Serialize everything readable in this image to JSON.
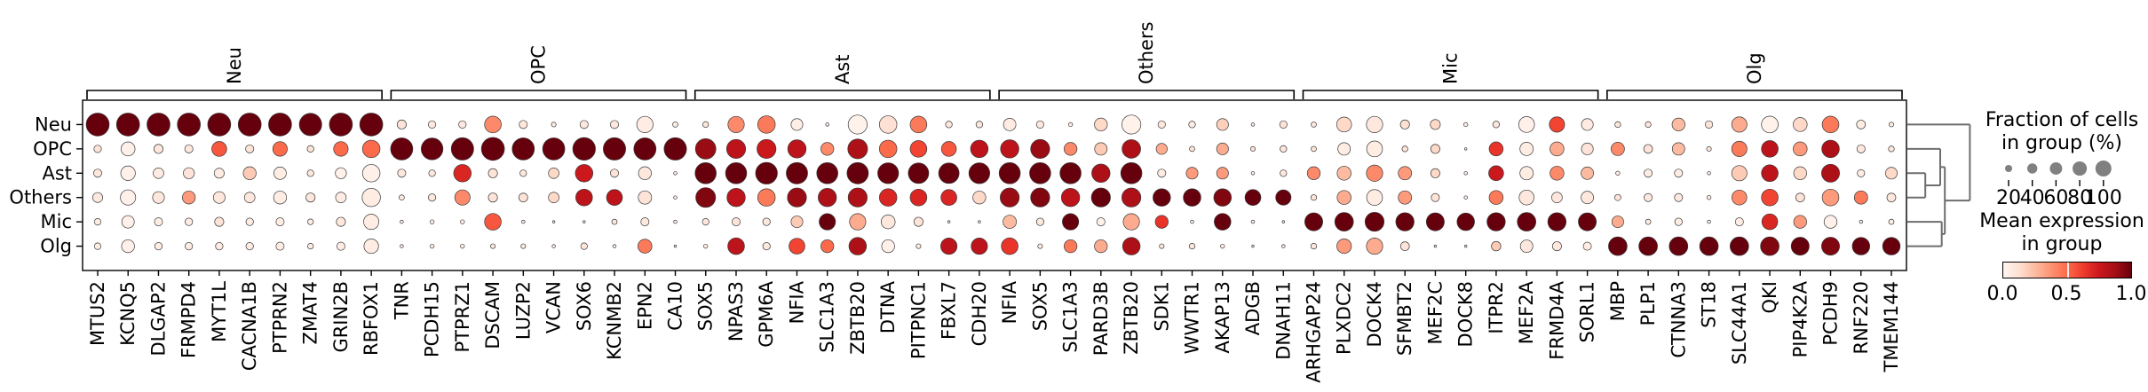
{
  "chart_data": {
    "type": "scatter",
    "subtype": "dotplot",
    "title": "",
    "xlabel": "",
    "ylabel": "",
    "rows": [
      "Neu",
      "OPC",
      "Ast",
      "Others",
      "Mic",
      "Olg"
    ],
    "gene_groups": [
      {
        "label": "Neu",
        "genes": [
          "MTUS2",
          "KCNQ5",
          "DLGAP2",
          "FRMPD4",
          "MYT1L",
          "CACNA1B",
          "PTPRN2",
          "ZMAT4",
          "GRIN2B",
          "RBFOX1"
        ]
      },
      {
        "label": "OPC",
        "genes": [
          "TNR",
          "PCDH15",
          "PTPRZ1",
          "DSCAM",
          "LUZP2",
          "VCAN",
          "SOX6",
          "KCNMB2",
          "EPN2",
          "CA10"
        ]
      },
      {
        "label": "Ast",
        "genes": [
          "SOX5",
          "NPAS3",
          "GPM6A",
          "NFIA",
          "SLC1A3",
          "ZBTB20",
          "DTNA",
          "PITPNC1",
          "FBXL7",
          "CDH20"
        ]
      },
      {
        "label": "Others",
        "genes": [
          "NFIA",
          "SOX5",
          "SLC1A3",
          "PARD3B",
          "ZBTB20",
          "SDK1",
          "WWTR1",
          "AKAP13",
          "ADGB",
          "DNAH11"
        ]
      },
      {
        "label": "Mic",
        "genes": [
          "ARHGAP24",
          "PLXDC2",
          "DOCK4",
          "SFMBT2",
          "MEF2C",
          "DOCK8",
          "ITPR2",
          "MEF2A",
          "FRMD4A",
          "SORL1"
        ]
      },
      {
        "label": "Olg",
        "genes": [
          "MBP",
          "PLP1",
          "CTNNA3",
          "ST18",
          "SLC44A1",
          "QKI",
          "PIP4K2A",
          "PCDH9",
          "RNF220",
          "TMEM144"
        ]
      }
    ],
    "fraction_pct": {
      "Neu": [
        95,
        95,
        95,
        95,
        95,
        95,
        95,
        90,
        95,
        95,
        15,
        10,
        10,
        50,
        12,
        4,
        12,
        12,
        48,
        5,
        6,
        48,
        55,
        25,
        2,
        65,
        55,
        50,
        8,
        8,
        28,
        10,
        3,
        30,
        65,
        10,
        8,
        25,
        2,
        10,
        5,
        40,
        48,
        15,
        18,
        3,
        8,
        45,
        42,
        25,
        6,
        6,
        30,
        10,
        42,
        50,
        35,
        50,
        14,
        4
      ],
      "OPC": [
        10,
        35,
        15,
        12,
        40,
        12,
        38,
        8,
        38,
        55,
        88,
        85,
        90,
        95,
        88,
        88,
        92,
        90,
        88,
        90,
        75,
        65,
        65,
        60,
        30,
        70,
        55,
        50,
        40,
        55,
        60,
        65,
        30,
        28,
        62,
        22,
        5,
        25,
        4,
        8,
        5,
        28,
        45,
        6,
        15,
        1,
        35,
        32,
        35,
        25,
        32,
        14,
        28,
        4,
        42,
        50,
        35,
        55,
        12,
        6
      ],
      "Ast": [
        12,
        38,
        20,
        22,
        18,
        30,
        28,
        8,
        22,
        55,
        12,
        8,
        55,
        15,
        8,
        20,
        55,
        12,
        30,
        2,
        80,
        80,
        85,
        82,
        80,
        82,
        78,
        75,
        75,
        78,
        80,
        80,
        80,
        60,
        80,
        12,
        25,
        25,
        2,
        8,
        30,
        35,
        48,
        32,
        15,
        2,
        40,
        32,
        35,
        28,
        3,
        12,
        12,
        2,
        42,
        50,
        30,
        58,
        10,
        25
      ],
      "Others": [
        18,
        42,
        25,
        30,
        25,
        20,
        30,
        15,
        20,
        60,
        5,
        10,
        42,
        15,
        14,
        20,
        50,
        45,
        32,
        2,
        70,
        60,
        55,
        65,
        60,
        65,
        55,
        50,
        45,
        30,
        65,
        65,
        60,
        65,
        65,
        55,
        55,
        55,
        45,
        42,
        6,
        35,
        45,
        32,
        12,
        2,
        35,
        40,
        20,
        28,
        7,
        12,
        12,
        3,
        40,
        50,
        14,
        50,
        32,
        14
      ],
      "Mic": [
        8,
        28,
        12,
        10,
        15,
        10,
        12,
        6,
        15,
        42,
        2,
        3,
        3,
        50,
        2,
        1,
        1,
        5,
        12,
        2,
        8,
        12,
        10,
        25,
        48,
        48,
        35,
        15,
        1,
        1,
        32,
        10,
        48,
        12,
        48,
        30,
        2,
        50,
        2,
        1,
        58,
        62,
        65,
        60,
        58,
        55,
        60,
        62,
        60,
        58,
        25,
        5,
        10,
        2,
        12,
        45,
        30,
        30,
        2,
        5
      ],
      "Olg": [
        8,
        30,
        10,
        10,
        10,
        10,
        12,
        6,
        12,
        38,
        2,
        3,
        3,
        4,
        4,
        2,
        8,
        2,
        35,
        1,
        3,
        50,
        10,
        45,
        30,
        55,
        30,
        4,
        48,
        48,
        50,
        4,
        30,
        30,
        55,
        4,
        6,
        3,
        1,
        2,
        6,
        38,
        48,
        14,
        1,
        1,
        16,
        28,
        15,
        12,
        62,
        62,
        62,
        62,
        62,
        62,
        58,
        58,
        55,
        55
      ]
    },
    "mean_expression": {
      "Neu": [
        1,
        1,
        1,
        1,
        1,
        1,
        1,
        1,
        1,
        1,
        0.1,
        0.08,
        0.08,
        0.4,
        0.08,
        0.05,
        0.08,
        0.08,
        0.05,
        0.05,
        0.08,
        0.4,
        0.45,
        0.04,
        0.05,
        0.02,
        0.12,
        0.45,
        0.08,
        0.08,
        0.06,
        0.08,
        0.05,
        0.15,
        0.02,
        0.08,
        0.05,
        0.18,
        0.05,
        0.1,
        0.08,
        0.15,
        0.08,
        0.12,
        0.15,
        0.05,
        0.08,
        0.03,
        0.6,
        0.06,
        0.08,
        0.08,
        0.25,
        0.1,
        0.3,
        0.02,
        0.15,
        0.45,
        0.05,
        0.05
      ],
      "OPC": [
        0.1,
        0.03,
        0.08,
        0.08,
        0.55,
        0.1,
        0.5,
        0.1,
        0.5,
        0.5,
        1,
        1,
        1,
        1,
        1,
        1,
        1,
        1,
        1,
        1,
        0.9,
        0.8,
        0.75,
        0.8,
        0.4,
        0.85,
        0.5,
        0.6,
        0.55,
        0.8,
        0.8,
        0.9,
        0.4,
        0.2,
        0.85,
        0.3,
        0.1,
        0.3,
        0.1,
        0.08,
        0.1,
        0.05,
        0.05,
        0.1,
        0.15,
        0.05,
        0.65,
        0.05,
        0.3,
        0.1,
        0.4,
        0.1,
        0.25,
        0.08,
        0.45,
        0.8,
        0.35,
        0.85,
        0.08,
        0.08
      ],
      "Ast": [
        0.08,
        0.03,
        0.05,
        0.1,
        0.05,
        0.2,
        0.05,
        0.08,
        0.03,
        0.03,
        0.08,
        0.08,
        0.7,
        0.1,
        0.08,
        0.15,
        0.75,
        0.1,
        0.08,
        0.05,
        1,
        1,
        1,
        1,
        1,
        1,
        1,
        1,
        1,
        1,
        1,
        1,
        1,
        0.85,
        1,
        0.05,
        0.35,
        0.35,
        0.05,
        0.08,
        0.4,
        0.25,
        0.4,
        0.35,
        0.15,
        0.05,
        0.75,
        0.05,
        0.4,
        0.25,
        0.05,
        0.05,
        0.05,
        0.05,
        0.2,
        0.8,
        0.15,
        0.85,
        0.05,
        0.15
      ],
      "Others": [
        0.08,
        0.03,
        0.08,
        0.35,
        0.08,
        0.08,
        0.05,
        0.08,
        0.05,
        0.05,
        0.05,
        0.08,
        0.4,
        0.1,
        0.1,
        0.15,
        0.8,
        0.8,
        0.1,
        0.05,
        0.95,
        0.8,
        0.45,
        0.9,
        0.85,
        0.85,
        0.7,
        0.7,
        0.7,
        0.15,
        0.9,
        0.95,
        0.8,
        1,
        0.85,
        1,
        1,
        0.95,
        1,
        1,
        0.1,
        0.3,
        0.05,
        0.35,
        0.1,
        0.05,
        0.45,
        0.08,
        0.08,
        0.08,
        0.1,
        0.08,
        0.08,
        0.05,
        0.4,
        0.6,
        0.1,
        0.35,
        0.45,
        0.08
      ],
      "Mic": [
        0.05,
        0.03,
        0.05,
        0.05,
        0.1,
        0.05,
        0.05,
        0.05,
        0.08,
        0.05,
        0.05,
        0.05,
        0.05,
        0.55,
        0.05,
        0.05,
        0.05,
        0.08,
        0.08,
        0.05,
        0.08,
        0.1,
        0.08,
        0.2,
        1,
        0.3,
        0.08,
        0.1,
        0.05,
        0.05,
        0.25,
        0.08,
        1,
        0.02,
        0.3,
        0.65,
        0.05,
        1,
        0.05,
        0.05,
        1,
        1,
        1,
        1,
        1,
        1,
        1,
        1,
        1,
        1,
        0.3,
        0.05,
        0.05,
        0.05,
        0.05,
        0.7,
        0.35,
        0.03,
        0.05,
        0.05
      ],
      "Olg": [
        0.05,
        0.03,
        0.05,
        0.05,
        0.05,
        0.05,
        0.05,
        0.05,
        0.05,
        0.05,
        0.05,
        0.05,
        0.05,
        0.08,
        0.08,
        0.05,
        0.1,
        0.05,
        0.45,
        0.05,
        0.05,
        0.8,
        0.08,
        0.6,
        0.5,
        0.85,
        0.03,
        0.05,
        0.8,
        0.8,
        0.65,
        0.05,
        0.45,
        0.3,
        0.85,
        0.08,
        0.08,
        0.05,
        0.05,
        0.05,
        0.08,
        0.35,
        0.3,
        0.1,
        0.05,
        0.05,
        0.2,
        0.08,
        0.08,
        0.05,
        1,
        1,
        1,
        1,
        1,
        0.95,
        1,
        0.95,
        1,
        1
      ]
    },
    "size_legend": {
      "title_line1": "Fraction of cells",
      "title_line2": "in group (%)",
      "values": [
        20,
        40,
        60,
        80,
        100
      ]
    },
    "color_legend": {
      "title_line1": "Mean expression",
      "title_line2": "in group",
      "ticks": [
        "0.0",
        "0.5",
        "1.0"
      ],
      "stops": [
        [
          0.0,
          "#fff5f0"
        ],
        [
          0.125,
          "#fee0d2"
        ],
        [
          0.25,
          "#fcbba1"
        ],
        [
          0.375,
          "#fc9272"
        ],
        [
          0.5,
          "#fb6a4a"
        ],
        [
          0.625,
          "#ef3b2c"
        ],
        [
          0.75,
          "#cb181d"
        ],
        [
          0.875,
          "#a50f15"
        ],
        [
          1.0,
          "#67000d"
        ]
      ]
    },
    "dendrogram": {
      "merges": [
        {
          "a": "Ast",
          "b": "Others",
          "depth": 1.15
        },
        {
          "a": "OPC",
          "b": "M0",
          "depth": 2.1
        },
        {
          "a": "Mic",
          "b": "Olg",
          "depth": 2.2
        },
        {
          "a": "M1",
          "b": "M2",
          "depth": 2.4
        },
        {
          "a": "Neu",
          "b": "M3",
          "depth": 4.0
        }
      ],
      "color": "#6e6e6e"
    },
    "style": {
      "dot_max_radius": 13.3,
      "dot_edge_color": "#3a3a3a",
      "legend_dot_color": "#808080",
      "frame_color": "#000000",
      "background": "#ffffff"
    }
  }
}
